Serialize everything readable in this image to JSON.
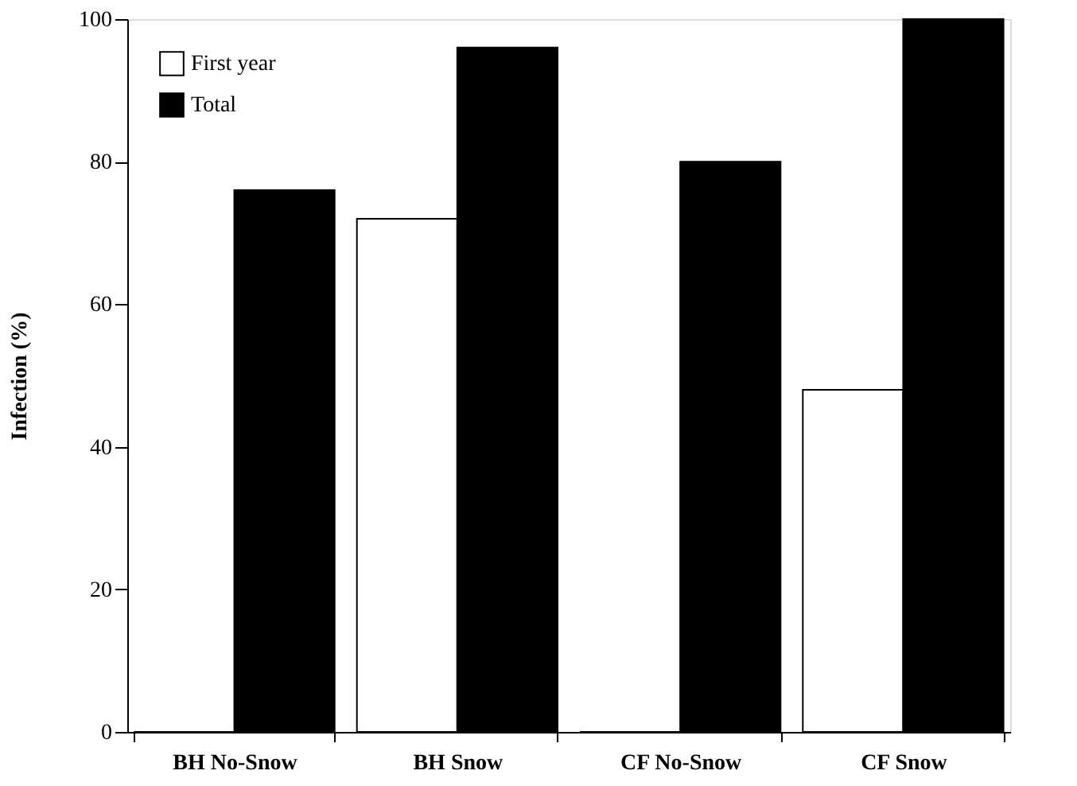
{
  "chart_data": {
    "type": "bar",
    "ylabel": "Infection (%)",
    "categories": [
      "BH  No-Snow",
      "BH  Snow",
      "CF  No-Snow",
      "CF  Snow"
    ],
    "series": [
      {
        "name": "First year",
        "color": "#ffffff",
        "values": [
          0,
          72,
          0,
          48
        ]
      },
      {
        "name": "Total",
        "color": "#000000",
        "values": [
          76,
          96,
          80,
          100
        ]
      }
    ],
    "ylim": [
      0,
      100
    ],
    "yticks": [
      0,
      20,
      40,
      60,
      80,
      100
    ],
    "grid": false,
    "legend": "top left"
  }
}
